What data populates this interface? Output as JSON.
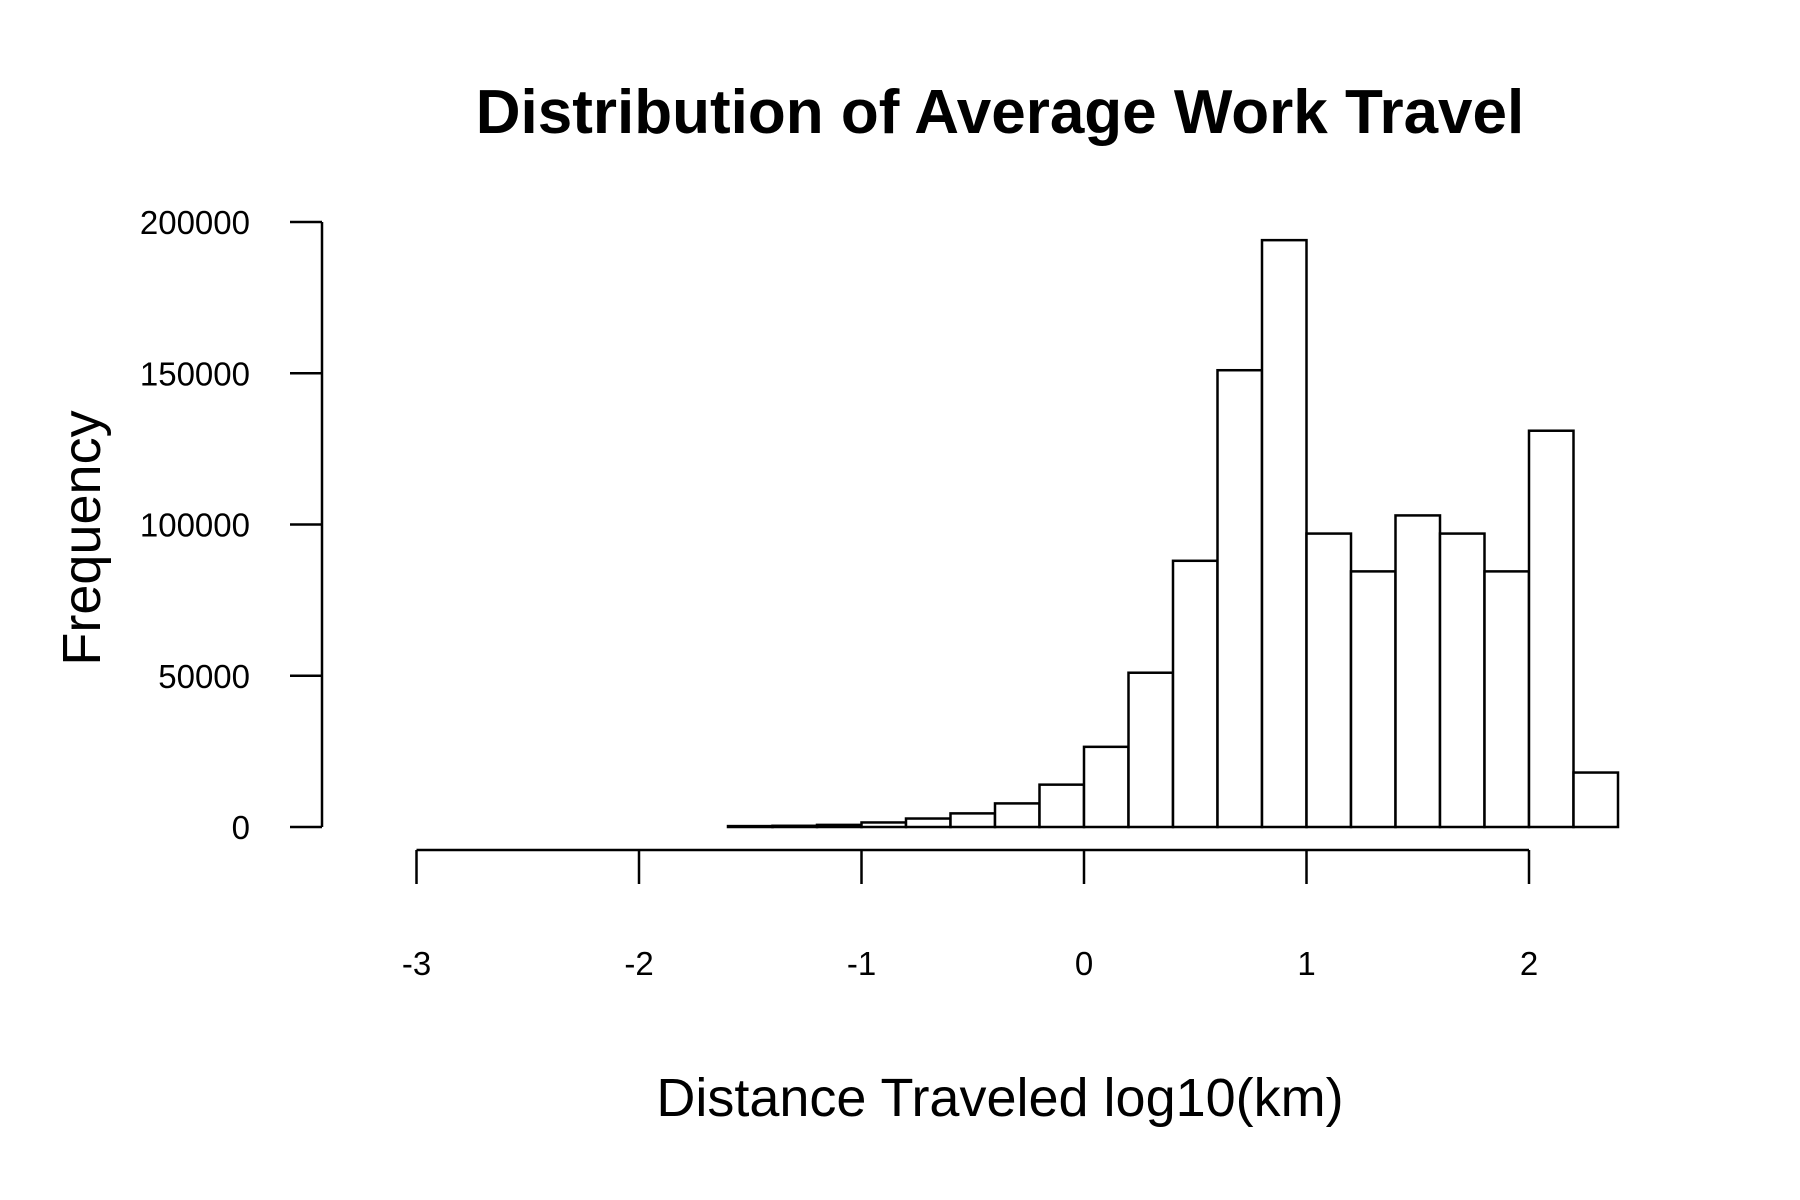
{
  "chart_data": {
    "type": "bar",
    "title": "Distribution of Average Work Travel",
    "xlabel": "Distance Traveled log10(km)",
    "ylabel": "Frequency",
    "xlim": [
      -3.2,
      2.4
    ],
    "ylim": [
      0,
      200000
    ],
    "x_ticks": [
      -3,
      -2,
      -1,
      0,
      1,
      2
    ],
    "y_ticks": [
      0,
      50000,
      100000,
      150000,
      200000
    ],
    "bin_width": 0.2,
    "bins": [
      {
        "x0": -3.2,
        "x1": -3.0,
        "count": 0
      },
      {
        "x0": -3.0,
        "x1": -2.8,
        "count": 0
      },
      {
        "x0": -2.8,
        "x1": -2.6,
        "count": 0
      },
      {
        "x0": -2.6,
        "x1": -2.4,
        "count": 0
      },
      {
        "x0": -2.4,
        "x1": -2.2,
        "count": 0
      },
      {
        "x0": -2.2,
        "x1": -2.0,
        "count": 0
      },
      {
        "x0": -2.0,
        "x1": -1.8,
        "count": 0
      },
      {
        "x0": -1.8,
        "x1": -1.6,
        "count": 0
      },
      {
        "x0": -1.6,
        "x1": -1.4,
        "count": 300
      },
      {
        "x0": -1.4,
        "x1": -1.2,
        "count": 400
      },
      {
        "x0": -1.2,
        "x1": -1.0,
        "count": 700
      },
      {
        "x0": -1.0,
        "x1": -0.8,
        "count": 1500
      },
      {
        "x0": -0.8,
        "x1": -0.6,
        "count": 2800
      },
      {
        "x0": -0.6,
        "x1": -0.4,
        "count": 4500
      },
      {
        "x0": -0.4,
        "x1": -0.2,
        "count": 7800
      },
      {
        "x0": -0.2,
        "x1": 0.0,
        "count": 14000
      },
      {
        "x0": 0.0,
        "x1": 0.2,
        "count": 26500
      },
      {
        "x0": 0.2,
        "x1": 0.4,
        "count": 51000
      },
      {
        "x0": 0.4,
        "x1": 0.6,
        "count": 88000
      },
      {
        "x0": 0.6,
        "x1": 0.8,
        "count": 151000
      },
      {
        "x0": 0.8,
        "x1": 1.0,
        "count": 194000
      },
      {
        "x0": 1.0,
        "x1": 1.2,
        "count": 97000
      },
      {
        "x0": 1.2,
        "x1": 1.4,
        "count": 84500
      },
      {
        "x0": 1.4,
        "x1": 1.6,
        "count": 103000
      },
      {
        "x0": 1.6,
        "x1": 1.8,
        "count": 97000
      },
      {
        "x0": 1.8,
        "x1": 2.0,
        "count": 84500
      },
      {
        "x0": 2.0,
        "x1": 2.2,
        "count": 131000
      },
      {
        "x0": 2.2,
        "x1": 2.4,
        "count": 18000
      }
    ],
    "grid": false,
    "legend": "none"
  }
}
